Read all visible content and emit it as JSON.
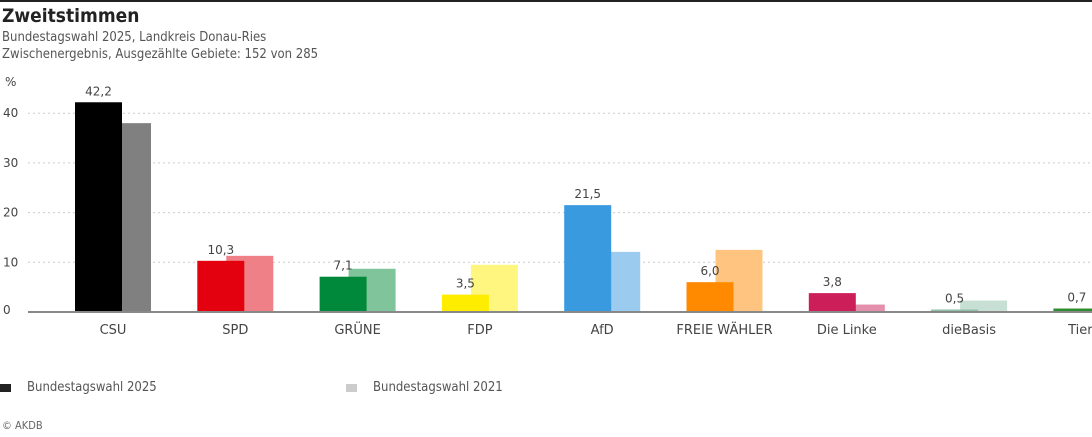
{
  "header": {
    "title": "Zweitstimmen",
    "subtitle": "Bundestagswahl 2025, Landkreis Donau-Ries",
    "status": "Zwischenergebnis, Ausgezählte Gebiete: 152 von 285"
  },
  "chart_data": {
    "type": "bar",
    "ylabel": "%",
    "ylim": [
      0,
      44
    ],
    "yticks": [
      0,
      10,
      20,
      30,
      40
    ],
    "grid": true,
    "categories": [
      "CSU",
      "SPD",
      "GRÜNE",
      "FDP",
      "AfD",
      "FREIE WÄHLER",
      "Die Linke",
      "dieBasis",
      "Tiersch"
    ],
    "series": [
      {
        "name": "Bundestagswahl 2025",
        "values": [
          42.2,
          10.3,
          7.1,
          3.5,
          21.5,
          6.0,
          3.8,
          0.5,
          0.7
        ],
        "labels": [
          "42,2",
          "10,3",
          "7,1",
          "3,5",
          "21,5",
          "6,0",
          "3,8",
          "0,5",
          "0,7"
        ],
        "colors": [
          "#000000",
          "#e3000f",
          "#00893a",
          "#ffed00",
          "#3a9ae0",
          "#ff8a00",
          "#cc1f59",
          "#8fbfa8",
          "#2e8b2e"
        ]
      },
      {
        "name": "Bundestagswahl 2021",
        "values": [
          38.0,
          11.3,
          8.7,
          9.5,
          12.1,
          12.5,
          1.5,
          2.3,
          null
        ],
        "colors": [
          "#808080",
          "#f08088",
          "#80c49c",
          "#fff680",
          "#9ccbf0",
          "#ffc480",
          "#e48fac",
          "#c7e0d3",
          "#97c597"
        ]
      }
    ],
    "legend_position": "bottom"
  },
  "legend": [
    {
      "label": "Bundestagswahl 2025",
      "color": "#222222"
    },
    {
      "label": "Bundestagswahl 2021",
      "color": "#cccccc"
    }
  ],
  "footer": {
    "copyright": "© AKDB"
  }
}
